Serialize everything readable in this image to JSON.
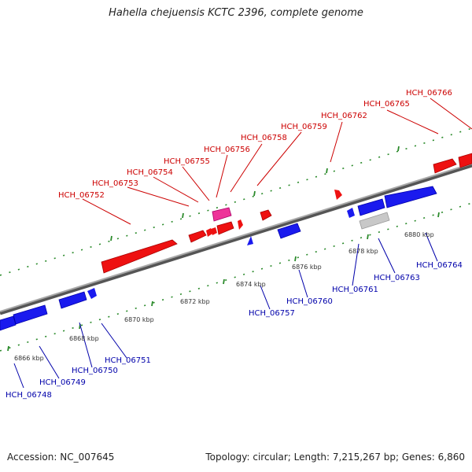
{
  "header": {
    "title": "Hahella chejuensis KCTC 2396, complete genome"
  },
  "footer": {
    "accession": "Accession: NC_007645",
    "summary": "Topology: circular; Length: 7,215,267 bp; Genes: 6,860"
  },
  "genome_map": {
    "colors": {
      "forward_gene": "#ee1111",
      "reverse_gene": "#1a1aee",
      "pink_gene": "#ee3399",
      "gray_gene": "#c0c0c0",
      "backbone": "#888888",
      "tick": "#2a8a2a",
      "label_forward": "#cc0000",
      "label_reverse": "#0000aa"
    },
    "scale_ticks": [
      "6866 kbp",
      "6868 kbp",
      "6870 kbp",
      "6872 kbp",
      "6874 kbp",
      "6876 kbp",
      "6878 kbp",
      "6880 kbp"
    ],
    "forward_labels": [
      "HCH_06752",
      "HCH_06753",
      "HCH_06754",
      "HCH_06755",
      "HCH_06756",
      "HCH_06758",
      "HCH_06759",
      "HCH_06762",
      "HCH_06765",
      "HCH_06766"
    ],
    "reverse_labels": [
      "HCH_06748",
      "HCH_06749",
      "HCH_06750",
      "HCH_06751",
      "HCH_06757",
      "HCH_06760",
      "HCH_06761",
      "HCH_06763",
      "HCH_06764"
    ]
  }
}
